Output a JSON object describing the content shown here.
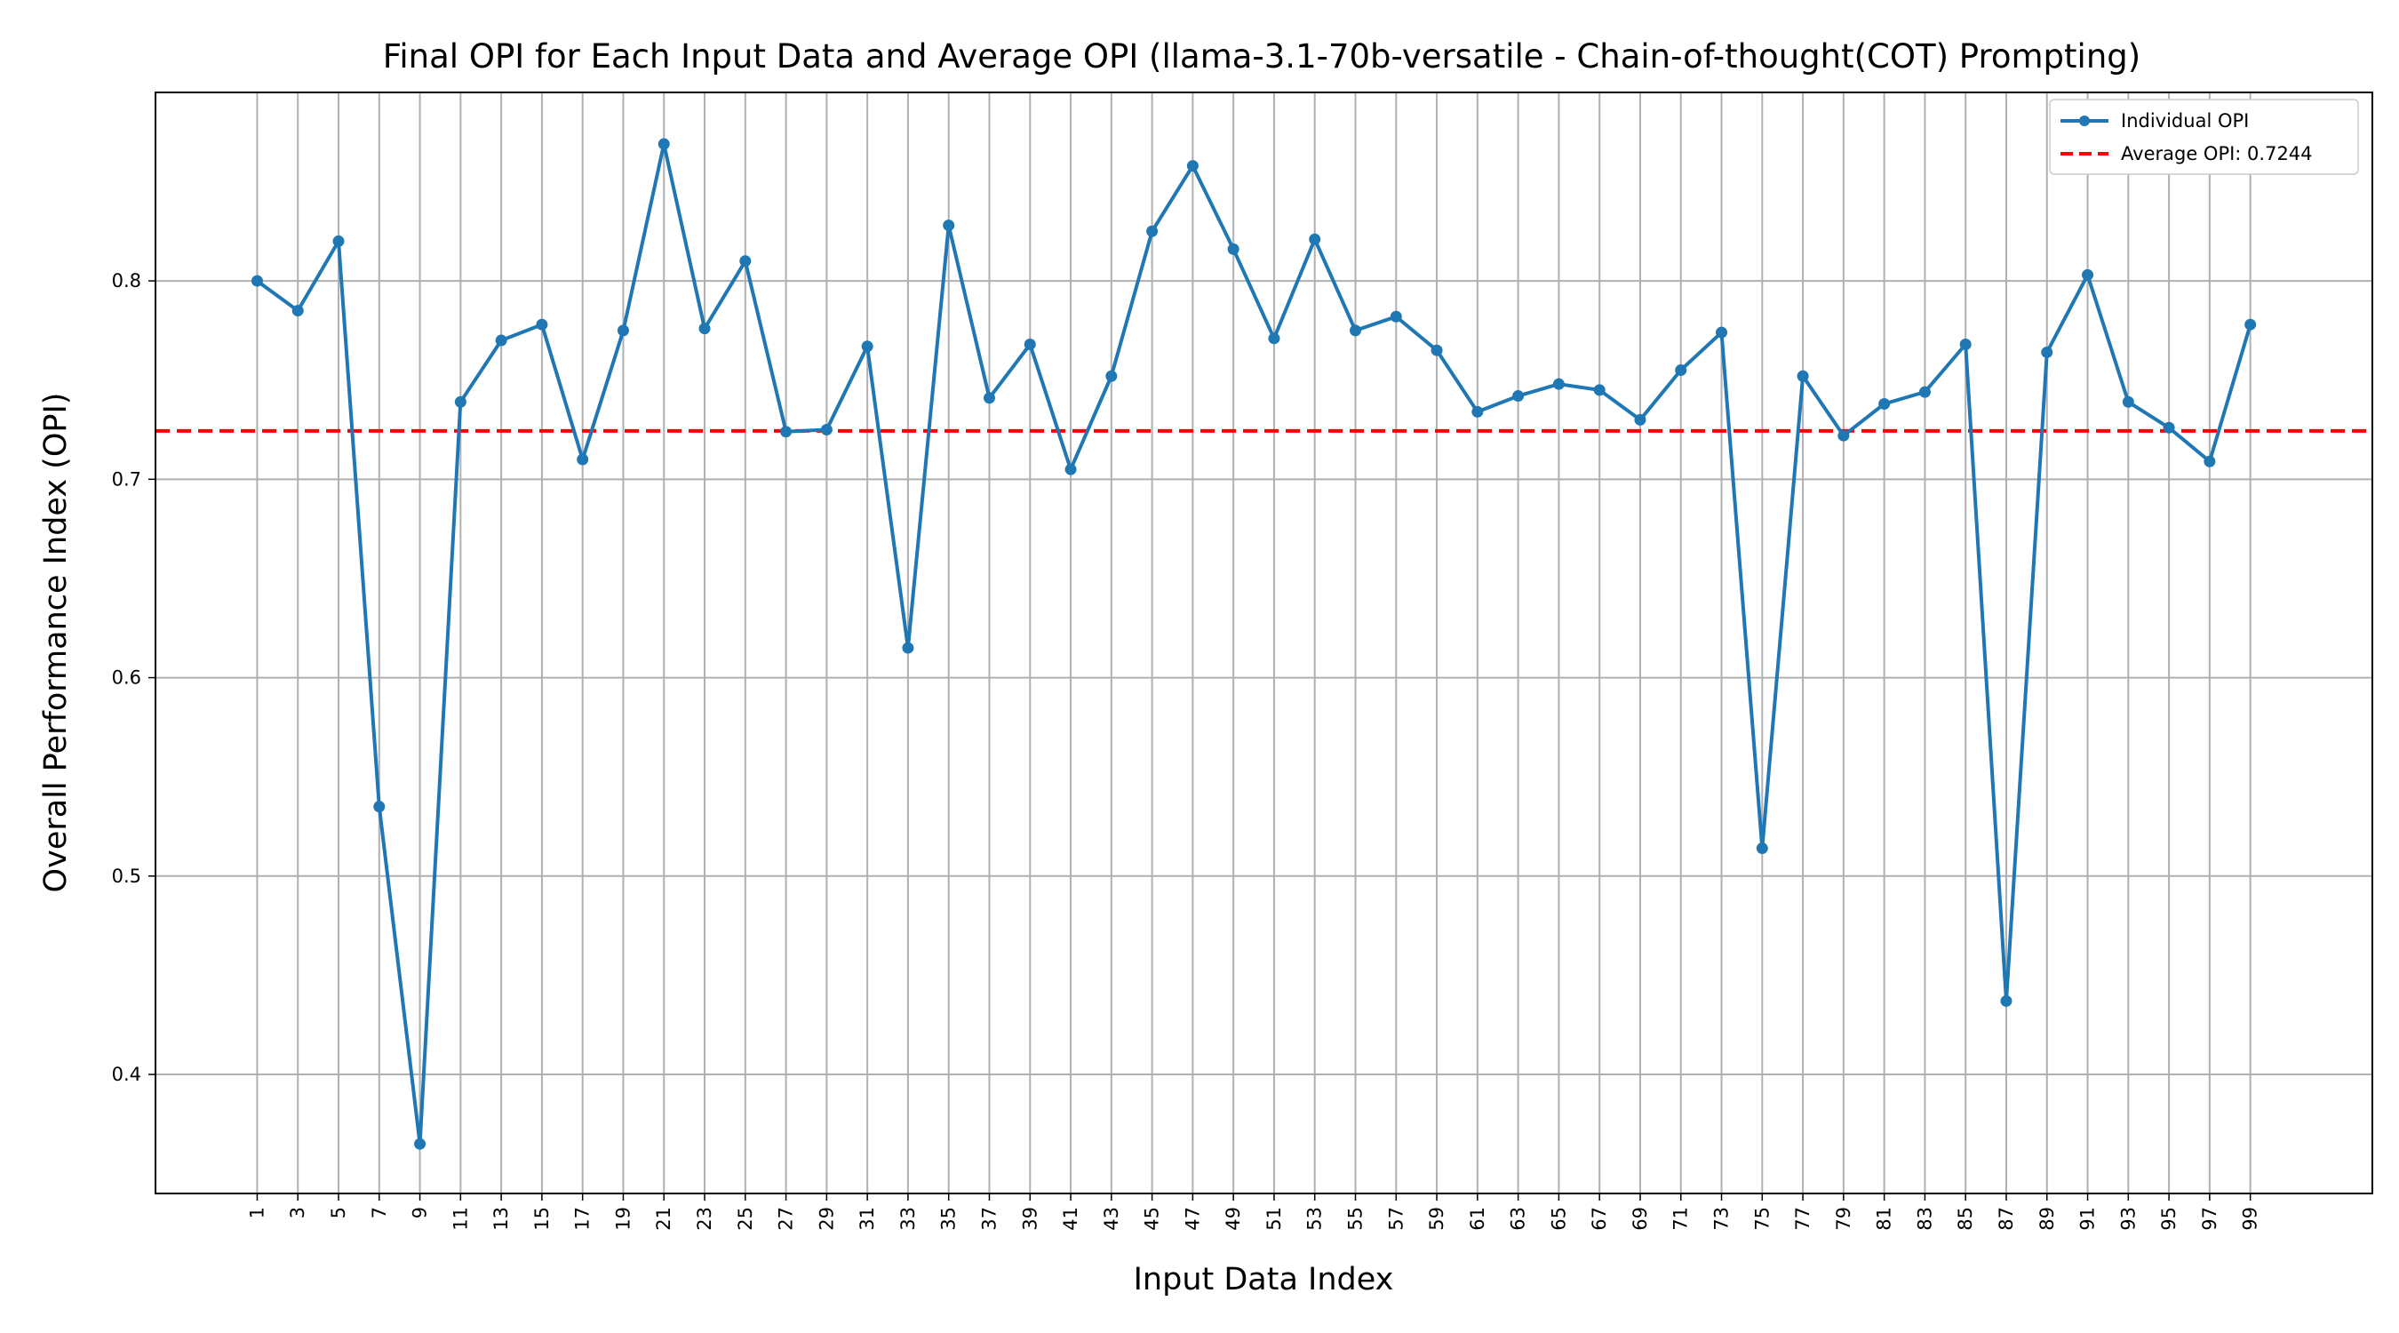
{
  "chart_data": {
    "type": "line",
    "title": "Final OPI for Each Input Data and Average OPI (llama-3.1-70b-versatile - Chain-of-thought(COT) Prompting)",
    "xlabel": "Input Data Index",
    "ylabel": "Overall Performance Index (OPI)",
    "x": [
      1,
      3,
      5,
      7,
      9,
      11,
      13,
      15,
      17,
      19,
      21,
      23,
      25,
      27,
      29,
      31,
      33,
      35,
      37,
      39,
      41,
      43,
      45,
      47,
      49,
      51,
      53,
      55,
      57,
      59,
      61,
      63,
      65,
      67,
      69,
      71,
      73,
      75,
      77,
      79,
      81,
      83,
      85,
      87,
      89,
      91,
      93,
      95,
      97,
      99
    ],
    "xticks": [
      "1",
      "3",
      "5",
      "7",
      "9",
      "11",
      "13",
      "15",
      "17",
      "19",
      "21",
      "23",
      "25",
      "27",
      "29",
      "31",
      "33",
      "35",
      "37",
      "39",
      "41",
      "43",
      "45",
      "47",
      "49",
      "51",
      "53",
      "55",
      "57",
      "59",
      "61",
      "63",
      "65",
      "67",
      "69",
      "71",
      "73",
      "75",
      "77",
      "79",
      "81",
      "83",
      "85",
      "87",
      "89",
      "91",
      "93",
      "95",
      "97",
      "99"
    ],
    "yticks": [
      "0.4",
      "0.5",
      "0.6",
      "0.7",
      "0.8"
    ],
    "xlim": [
      -4,
      105
    ],
    "ylim": [
      0.34,
      0.895
    ],
    "grid": true,
    "legend_position": "top-right",
    "series": [
      {
        "name": "Individual OPI",
        "color": "#1f77b4",
        "marker": "circle",
        "values": [
          0.8,
          0.785,
          0.82,
          0.535,
          0.365,
          0.739,
          0.77,
          0.778,
          0.71,
          0.775,
          0.869,
          0.776,
          0.81,
          0.724,
          0.725,
          0.767,
          0.615,
          0.828,
          0.741,
          0.768,
          0.705,
          0.752,
          0.825,
          0.858,
          0.816,
          0.771,
          0.821,
          0.775,
          0.782,
          0.765,
          0.734,
          0.742,
          0.748,
          0.745,
          0.73,
          0.755,
          0.774,
          0.514,
          0.752,
          0.722,
          0.738,
          0.744,
          0.768,
          0.437,
          0.764,
          0.803,
          0.739,
          0.726,
          0.709,
          0.778
        ]
      }
    ],
    "average": {
      "name": "Average OPI: 0.7244",
      "value": 0.7244,
      "color": "#ff0000",
      "style": "dashed"
    }
  }
}
